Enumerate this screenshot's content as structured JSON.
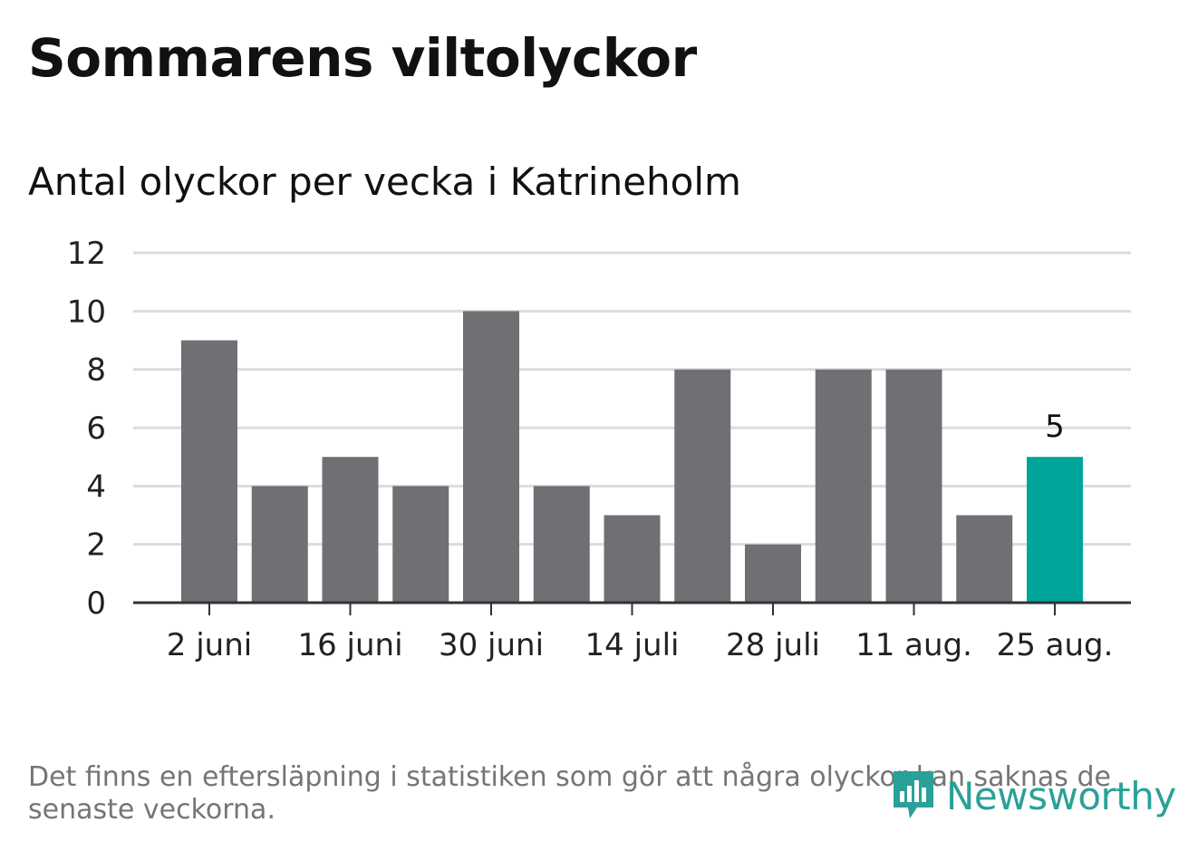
{
  "header": {
    "title": "Sommarens viltolyckor",
    "subtitle": "Antal olyckor per vecka i Katrineholm"
  },
  "footer": {
    "note": "Det finns en eftersläpning i statistiken som gör att några olyckor kan saknas de senaste veckorna.",
    "brand": "Newsworthy"
  },
  "colors": {
    "bar": "#706f74",
    "highlight": "#00a59b",
    "grid": "#dcdcdc",
    "axis": "#333333",
    "brand": "#2aa198"
  },
  "chart_data": {
    "type": "bar",
    "title": "Sommarens viltolyckor",
    "subtitle": "Antal olyckor per vecka i Katrineholm",
    "values": [
      9,
      4,
      5,
      4,
      10,
      4,
      3,
      8,
      2,
      8,
      8,
      3,
      5
    ],
    "tick_labels": [
      "2 juni",
      "16 juni",
      "30 juni",
      "14 juli",
      "28 juli",
      "11 aug.",
      "25 aug."
    ],
    "tick_every": 2,
    "ylim": [
      0,
      12
    ],
    "yticks": [
      0,
      2,
      4,
      6,
      8,
      10,
      12
    ],
    "highlight_index": 12,
    "highlight_label": "5",
    "grid": true
  }
}
